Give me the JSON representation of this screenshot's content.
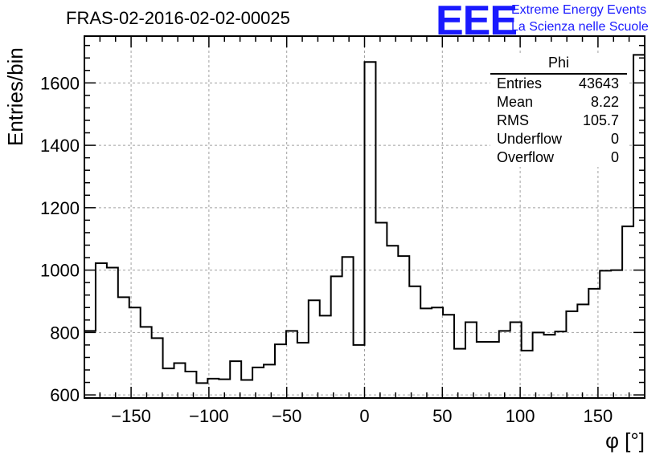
{
  "title": "FRAS-02-2016-02-02-00025",
  "logo": {
    "mark": "EEE",
    "line1": "Extreme Energy Events",
    "line2": "La Scienza nelle Scuole",
    "color": "#1a1aff"
  },
  "stats": {
    "name": "Phi",
    "rows": [
      {
        "label": "Entries",
        "value": "43643"
      },
      {
        "label": "Mean",
        "value": "8.22"
      },
      {
        "label": "RMS",
        "value": "105.7"
      },
      {
        "label": "Underflow",
        "value": "0"
      },
      {
        "label": "Overflow",
        "value": "0"
      }
    ]
  },
  "chart_data": {
    "type": "bar",
    "style": "step-histogram",
    "title": "FRAS-02-2016-02-02-00025",
    "xlabel": "φ [°]",
    "ylabel": "Entries/bin",
    "xlim": [
      -180,
      180
    ],
    "ylim": [
      590,
      1750
    ],
    "bin_width": 7.2,
    "grid": true,
    "x_ticks": [
      "−150",
      "−100",
      "−50",
      "0",
      "50",
      "100",
      "150"
    ],
    "x_tick_values": [
      -150,
      -100,
      -50,
      0,
      50,
      100,
      150
    ],
    "y_ticks": [
      "600",
      "800",
      "1000",
      "1200",
      "1400",
      "1600"
    ],
    "y_tick_values": [
      600,
      800,
      1000,
      1200,
      1400,
      1600
    ],
    "values": [
      805,
      1022,
      1008,
      913,
      880,
      818,
      782,
      685,
      702,
      675,
      638,
      652,
      650,
      708,
      648,
      688,
      697,
      762,
      805,
      767,
      903,
      854,
      980,
      1042,
      760,
      1667,
      1152,
      1078,
      1045,
      948,
      877,
      880,
      857,
      748,
      833,
      770,
      770,
      805,
      833,
      742,
      800,
      793,
      803,
      868,
      890,
      940,
      998,
      1000,
      1140,
      1690
    ]
  }
}
